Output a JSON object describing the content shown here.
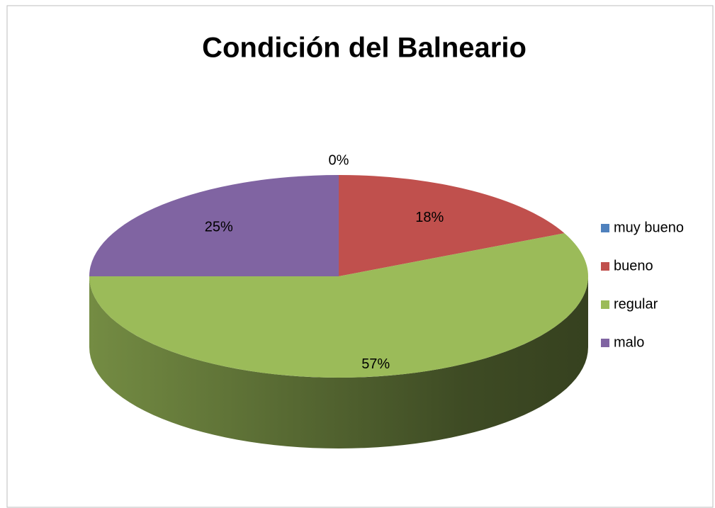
{
  "chart_data": {
    "type": "pie",
    "title": "Condición del Balneario",
    "categories": [
      "muy bueno",
      "bueno",
      "regular",
      "malo"
    ],
    "values": [
      0,
      18,
      57,
      25
    ],
    "value_labels": [
      "0%",
      "18%",
      "57%",
      "25%"
    ],
    "colors": [
      "#4f81bd",
      "#c0504d",
      "#9bbb59",
      "#8064a2"
    ],
    "legend": "right"
  }
}
